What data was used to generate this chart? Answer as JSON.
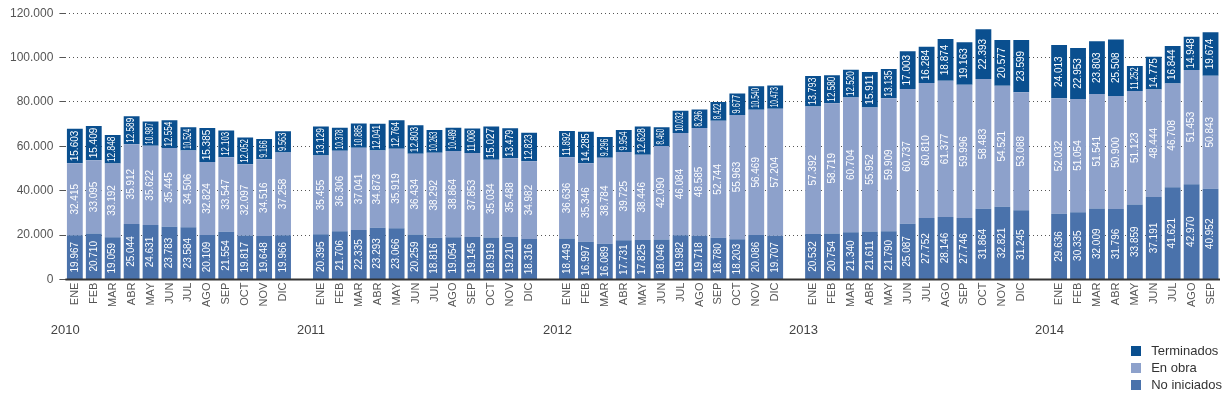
{
  "chart_data": {
    "type": "bar",
    "stacked": true,
    "grid": "y",
    "legend": "bottom right",
    "categories": [
      "ENE",
      "FEB",
      "MAR",
      "ABR",
      "MAY",
      "JUN",
      "JUL",
      "AGO",
      "SEP",
      "OCT",
      "NOV",
      "DIC",
      null,
      "ENE",
      "FEB",
      "MAR",
      "ABR",
      "MAY",
      "JUN",
      "JUL",
      "AGO",
      "SEP",
      "OCT",
      "NOV",
      "DIC",
      null,
      "ENE",
      "FEB",
      "MAR",
      "ABR",
      "MAY",
      "JUN",
      "JUL",
      "AGO",
      "SEP",
      "OCT",
      "NOV",
      "DIC",
      null,
      "ENE",
      "FEB",
      "MAR",
      "ABR",
      "MAY",
      "JUN",
      "JUL",
      "AGO",
      "SEP",
      "OCT",
      "NOV",
      "DIC",
      null,
      "ENE",
      "FEB",
      "MAR",
      "ABR",
      "MAY",
      "JUN",
      "JUL",
      "AGO",
      "SEP"
    ],
    "annotations": [
      "2010",
      "2011",
      "2012",
      "2013",
      "2014"
    ],
    "ylim": [
      0,
      120000
    ],
    "yticks": [
      {
        "value": 0,
        "label": "0"
      },
      {
        "value": 20000,
        "label": "20.000"
      },
      {
        "value": 40000,
        "label": "40.000"
      },
      {
        "value": 60000,
        "label": "60.000"
      },
      {
        "value": 80000,
        "label": "80.000"
      },
      {
        "value": 100000,
        "label": "100.000"
      },
      {
        "value": 120000,
        "label": "120.000"
      }
    ],
    "series": [
      {
        "name": "No iniciados",
        "color": "#4a72ab",
        "values": [
          19967,
          20710,
          19059,
          25044,
          24631,
          23783,
          23584,
          20109,
          21554,
          19817,
          19648,
          19966,
          null,
          20395,
          21706,
          22335,
          23293,
          23066,
          20259,
          18816,
          19054,
          19145,
          18919,
          19210,
          18316,
          null,
          18449,
          16997,
          16089,
          17731,
          17825,
          18046,
          19982,
          19718,
          18780,
          18203,
          20086,
          19707,
          null,
          20532,
          20754,
          21340,
          21611,
          21790,
          25087,
          27752,
          28146,
          27746,
          31864,
          32821,
          31245,
          null,
          29636,
          30335,
          32009,
          31796,
          33859,
          37191,
          41621,
          42970,
          40952
        ],
        "value_labels": [
          "19.967",
          "20.710",
          "19.059",
          "25.044",
          "24.631",
          "23.783",
          "23.584",
          "20.109",
          "21.554",
          "19.817",
          "19.648",
          "19.966",
          null,
          "20.395",
          "21.706",
          "22.335",
          "23.293",
          "23.066",
          "20.259",
          "18.816",
          "19.054",
          "19.145",
          "18.919",
          "19.210",
          "18.316",
          null,
          "18.449",
          "16.997",
          "16.089",
          "17.731",
          "17.825",
          "18.046",
          "19.982",
          "19.718",
          "18.780",
          "18.203",
          "20.086",
          "19.707",
          null,
          "20.532",
          "20.754",
          "21.340",
          "21.611",
          "21.790",
          "25.087",
          "27.752",
          "28.146",
          "27.746",
          "31.864",
          "32.821",
          "31.245",
          null,
          "29.636",
          "30.335",
          "32.009",
          "31.796",
          "33.859",
          "37.191",
          "41.621",
          "42.970",
          "40.952"
        ]
      },
      {
        "name": "En obra",
        "color": "#8da1cb",
        "values": [
          32415,
          33095,
          33192,
          35912,
          35622,
          35445,
          34506,
          32824,
          33547,
          32097,
          34516,
          37258,
          null,
          35455,
          36306,
          37041,
          34873,
          35919,
          36434,
          38292,
          38864,
          37853,
          35034,
          35488,
          34982,
          null,
          36636,
          35346,
          38784,
          39725,
          38446,
          42090,
          46084,
          48585,
          52744,
          55963,
          56469,
          57204,
          null,
          57392,
          58719,
          60704,
          55952,
          59909,
          60737,
          60810,
          61377,
          59996,
          58483,
          54521,
          53088,
          null,
          52032,
          51054,
          51541,
          50900,
          51123,
          48444,
          46708,
          51453,
          50843
        ],
        "value_labels": [
          "32.415",
          "33.095",
          "33.192",
          "35.912",
          "35.622",
          "35.445",
          "34.506",
          "32.824",
          "33.547",
          "32.097",
          "34.516",
          "37.258",
          null,
          "35.455",
          "36.306",
          "37.041",
          "34.873",
          "35.919",
          "36.434",
          "38.292",
          "38.864",
          "37.853",
          "35.034",
          "35.488",
          "34.982",
          null,
          "36.636",
          "35.346",
          "38.784",
          "39.725",
          "38.446",
          "42.090",
          "46.084",
          "48.585",
          "52.744",
          "55.963",
          "56.469",
          "57.204",
          null,
          "57.392",
          "58.719",
          "60.704",
          "55.952",
          "59.909",
          "60.737",
          "60.810",
          "61.377",
          "59.996",
          "58.483",
          "54.521",
          "53.088",
          null,
          "52.032",
          "51.054",
          "51.541",
          "50.900",
          "51.123",
          "48.444",
          "46.708",
          "51.453",
          "50.843"
        ]
      },
      {
        "name": "Terminados",
        "color": "#0a4f8f",
        "values": [
          15603,
          15409,
          12848,
          12589,
          10987,
          12554,
          10524,
          15385,
          12103,
          12052,
          9166,
          9563,
          null,
          13129,
          10378,
          10885,
          12041,
          12764,
          12803,
          10263,
          10489,
          11008,
          15027,
          13479,
          12823,
          null,
          11892,
          14285,
          9296,
          9954,
          12628,
          8460,
          10032,
          8296,
          8422,
          9677,
          10540,
          10473,
          null,
          13793,
          12580,
          12520,
          15911,
          13135,
          17003,
          16284,
          18874,
          19163,
          22393,
          20577,
          23599,
          null,
          24013,
          22953,
          23803,
          25508,
          11252,
          14775,
          16844,
          14948,
          19674
        ],
        "value_labels": [
          "15.603",
          "15.409",
          "12.848",
          "12.589",
          "10.987",
          "12.554",
          "10.524",
          "15.385",
          "12.103",
          "12.052",
          "9.166",
          "9.563",
          null,
          "13.129",
          "10.378",
          "10.885",
          "12.041",
          "12.764",
          "12.803",
          "10.263",
          "10.489",
          "11.008",
          "15.027",
          "13.479",
          "12.823",
          null,
          "11.892",
          "14.285",
          "9.296",
          "9.954",
          "12.628",
          "8.460",
          "10.032",
          "8.296",
          "8.422",
          "9.677",
          "10.540",
          "10.473",
          null,
          "13.793",
          "12.580",
          "12.520",
          "15.911",
          "13.135",
          "17.003",
          "16.284",
          "18.874",
          "19.163",
          "22.393",
          "20.577",
          "23.599",
          null,
          "24.013",
          "22.953",
          "23.803",
          "25.508",
          "11.252",
          "14.775",
          "16.844",
          "14.948",
          "19.674"
        ]
      }
    ]
  }
}
